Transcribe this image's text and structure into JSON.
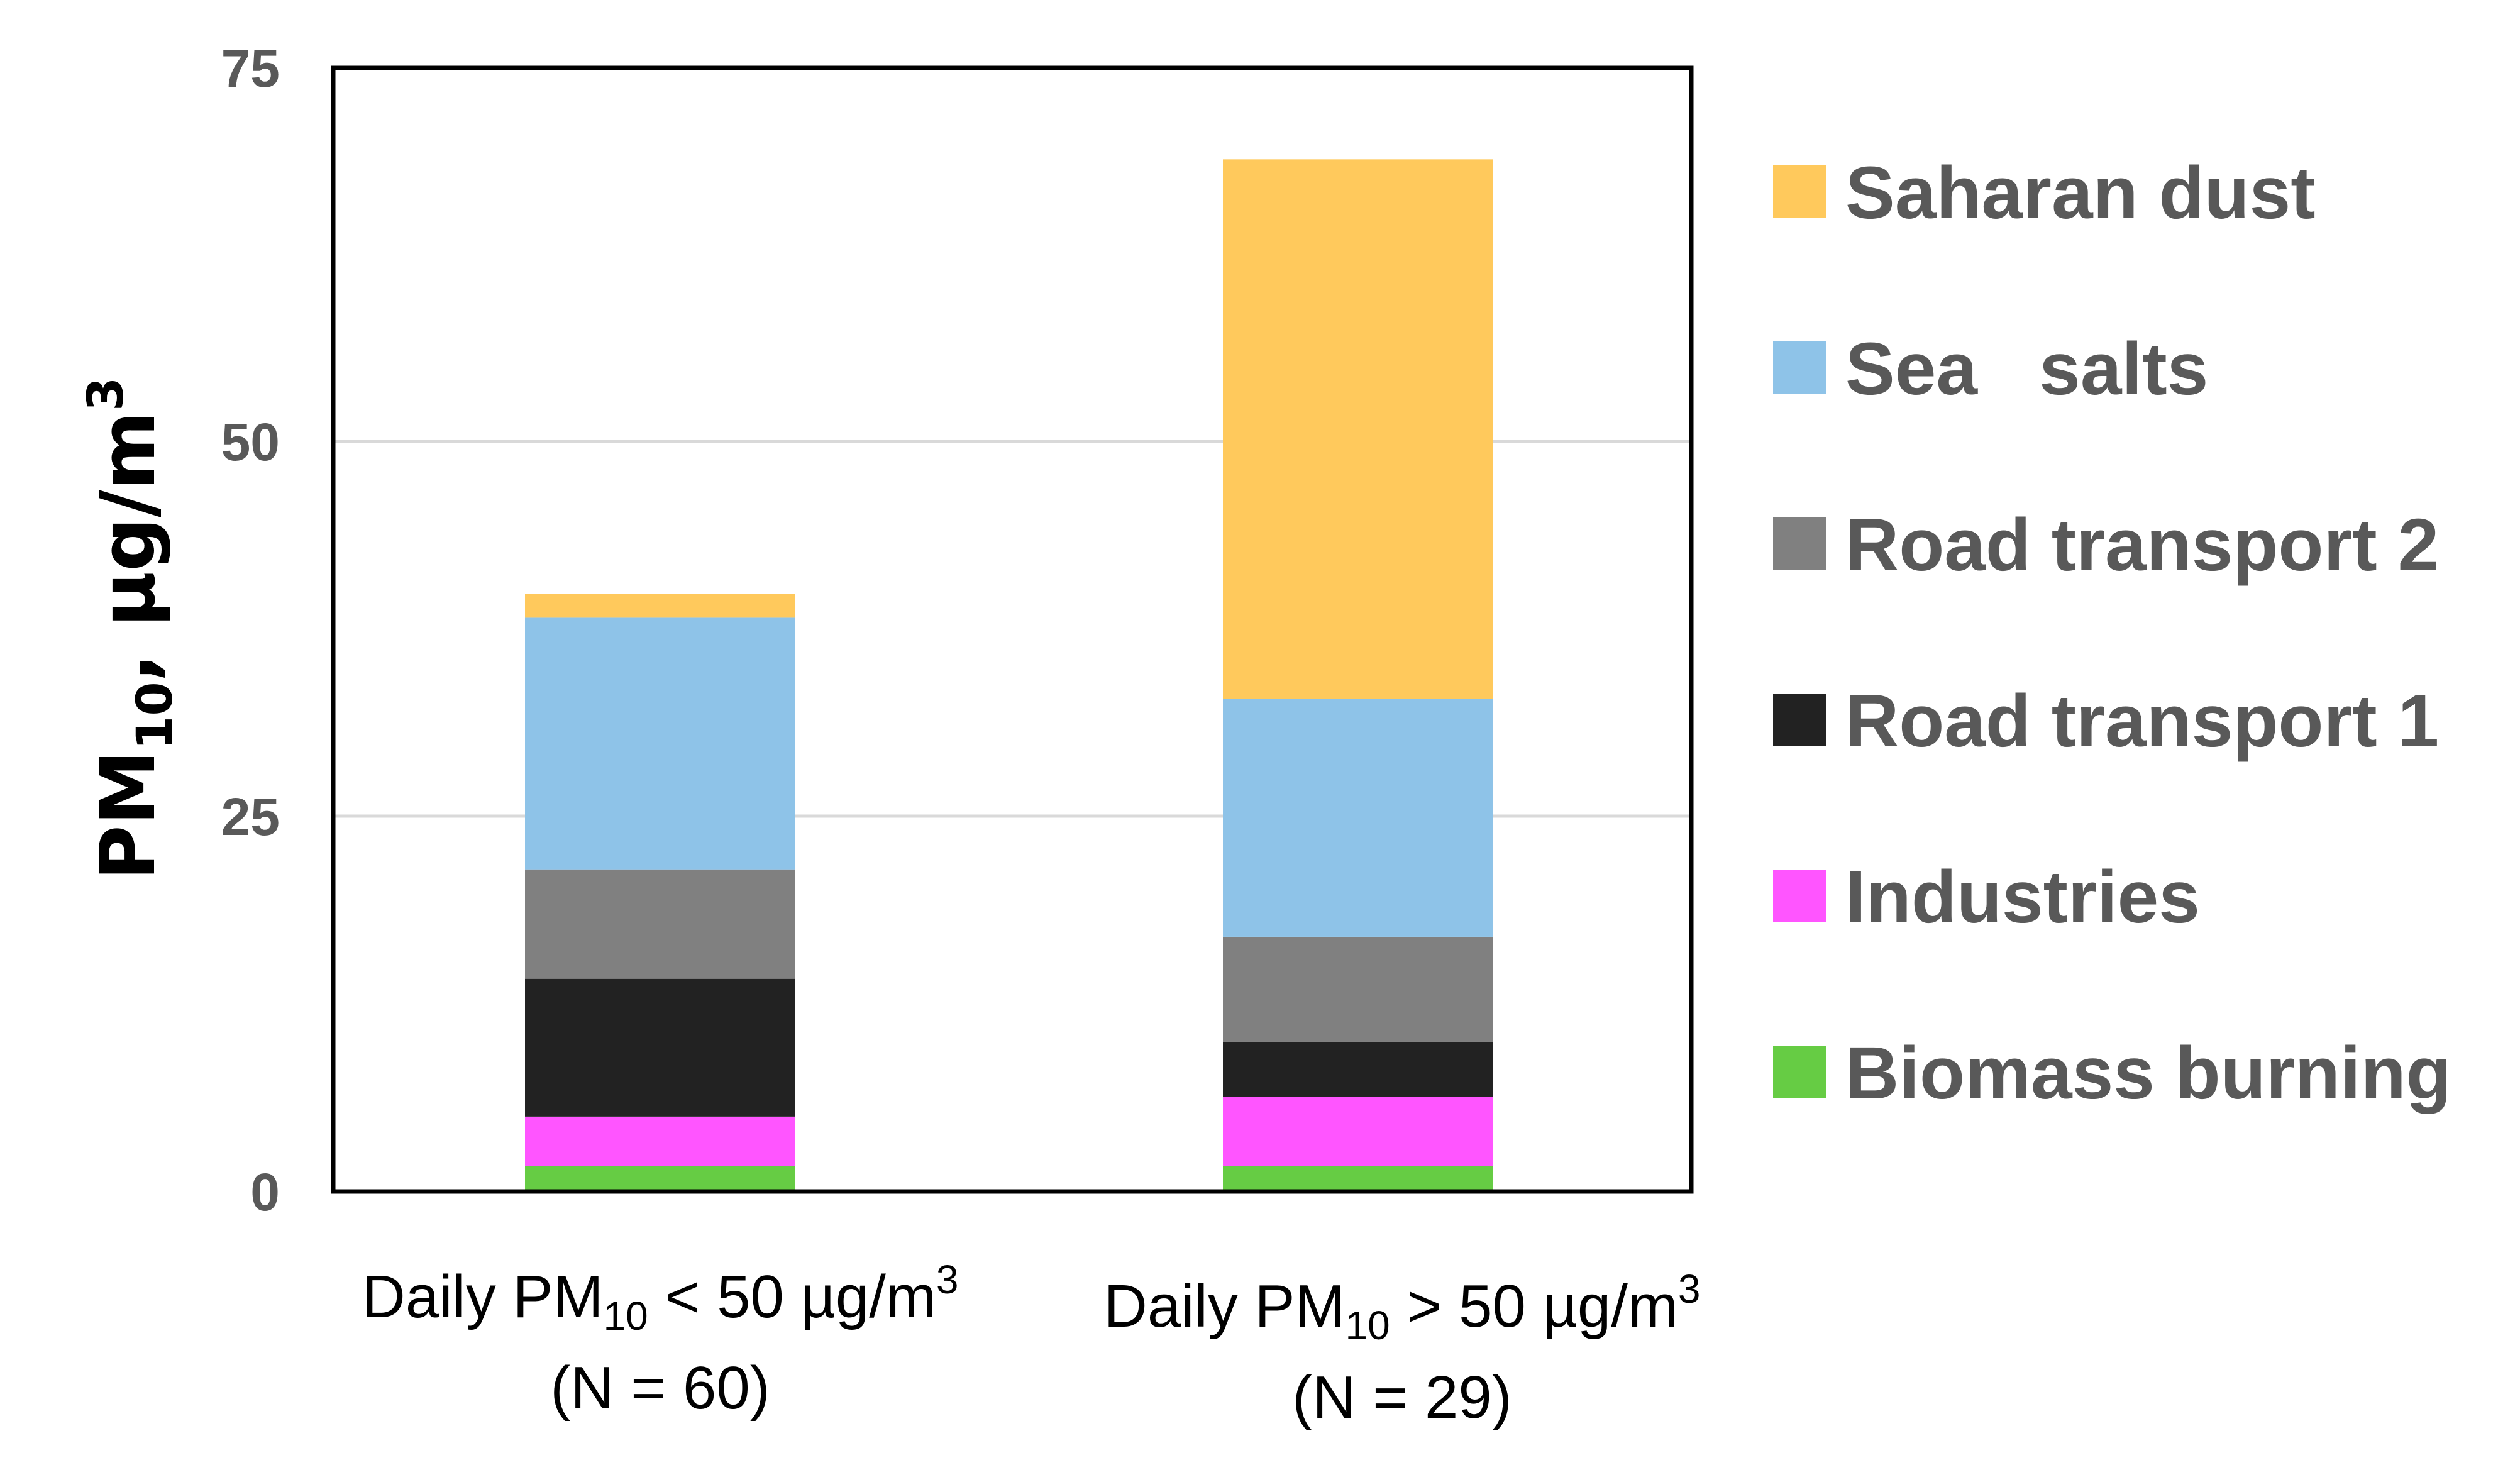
{
  "chart_data": {
    "type": "bar",
    "stacked": true,
    "title": "",
    "ylabel": {
      "main": "PM",
      "sub": "10",
      "rest": ", µg/m",
      "sup": "3"
    },
    "ylim": [
      0,
      75
    ],
    "yticks": [
      "0",
      "25",
      "50",
      "75"
    ],
    "grid": true,
    "legend_position": "right",
    "categories": [
      {
        "line1_main": "Daily PM",
        "line1_sub": "10",
        "line1_rest": " < 50 µg/m",
        "line1_sup": "3",
        "line2": "(N = 60)"
      },
      {
        "line1_main": "Daily PM",
        "line1_sub": "10",
        "line1_rest": " > 50 µg/m",
        "line1_sup": "3",
        "line2": "(N = 29)"
      }
    ],
    "series": [
      {
        "name": "Biomass burning",
        "color": "#66cc44",
        "values": [
          1.7,
          1.7
        ]
      },
      {
        "name": "Industries",
        "color": "#ff55ff",
        "values": [
          3.3,
          4.6
        ]
      },
      {
        "name": "Road transport 1",
        "color": "#222222",
        "values": [
          9.2,
          3.7
        ]
      },
      {
        "name": "Road transport 2",
        "color": "#808080",
        "values": [
          7.3,
          7.0
        ]
      },
      {
        "name": "Sea   salts",
        "color": "#8ec3e8",
        "values": [
          16.8,
          15.9
        ]
      },
      {
        "name": "Saharan dust",
        "color": "#ffc95c",
        "values": [
          1.6,
          36.0
        ]
      }
    ]
  }
}
